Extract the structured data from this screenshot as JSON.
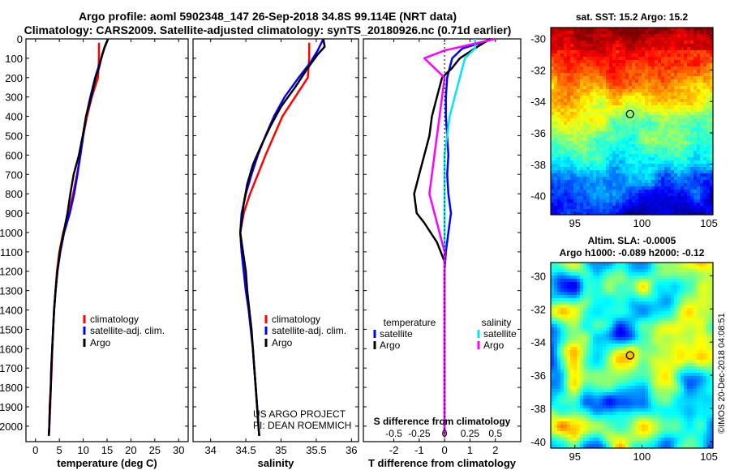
{
  "header": {
    "line1": "Argo profile: aoml 5902348_147 26-Sep-2018 34.8S 99.114E (NRT data)",
    "line2": "Climatology: CARS2009. Satellite-adjusted climatology: synTS_20180926.nc (0.71d earlier)"
  },
  "colors": {
    "climatology": "#ff0000",
    "satellite": "#0000ff",
    "argo": "#000000",
    "sat_salinity": "#00e5ff",
    "argo_salinity": "#ff00ff"
  },
  "chart_data": [
    {
      "type": "line",
      "panel": "temperature",
      "xlabel": "temperature (deg C)",
      "xlim": [
        -2,
        32
      ],
      "xticks": [
        0,
        5,
        10,
        15,
        20,
        25,
        30
      ],
      "ylim": [
        2080,
        0
      ],
      "yticks": [
        0,
        100,
        200,
        300,
        400,
        500,
        600,
        700,
        800,
        900,
        1000,
        1100,
        1200,
        1300,
        1400,
        1500,
        1600,
        1700,
        1800,
        1900,
        2000
      ],
      "legend": [
        "climatology",
        "satellite-adj. clim.",
        "Argo"
      ],
      "series": [
        {
          "name": "climatology",
          "color": "#ff0000",
          "points": [
            [
              13.3,
              20
            ],
            [
              13.3,
              100
            ],
            [
              13.1,
              200
            ],
            [
              11.8,
              300
            ],
            [
              10.8,
              400
            ],
            [
              10.0,
              500
            ],
            [
              9.4,
              600
            ],
            [
              8.7,
              700
            ],
            [
              7.9,
              800
            ],
            [
              7.0,
              900
            ],
            [
              5.8,
              1000
            ],
            [
              5.0,
              1100
            ],
            [
              4.5,
              1200
            ],
            [
              4.2,
              1300
            ],
            [
              3.9,
              1400
            ],
            [
              3.7,
              1500
            ],
            [
              3.5,
              1600
            ],
            [
              3.4,
              1700
            ],
            [
              3.2,
              1800
            ],
            [
              3.1,
              1900
            ],
            [
              2.9,
              2000
            ],
            [
              2.8,
              2050
            ]
          ]
        },
        {
          "name": "satellite-adj. clim.",
          "color": "#0000ff",
          "points": [
            [
              15.2,
              0
            ],
            [
              14.4,
              50
            ],
            [
              13.8,
              100
            ],
            [
              12.5,
              200
            ],
            [
              11.5,
              300
            ],
            [
              10.6,
              400
            ],
            [
              10.0,
              500
            ],
            [
              9.4,
              600
            ],
            [
              8.8,
              700
            ],
            [
              8.1,
              800
            ],
            [
              7.2,
              900
            ],
            [
              6.0,
              1000
            ],
            [
              5.2,
              1100
            ],
            [
              4.6,
              1200
            ],
            [
              4.2,
              1300
            ],
            [
              3.9,
              1400
            ],
            [
              3.7,
              1500
            ],
            [
              3.5,
              1600
            ],
            [
              3.3,
              1700
            ],
            [
              3.2,
              1800
            ],
            [
              3.0,
              1900
            ],
            [
              2.9,
              2000
            ],
            [
              2.8,
              2050
            ]
          ]
        },
        {
          "name": "Argo",
          "color": "#000000",
          "points": [
            [
              15.2,
              0
            ],
            [
              14.5,
              40
            ],
            [
              14.0,
              80
            ],
            [
              13.3,
              150
            ],
            [
              12.6,
              200
            ],
            [
              11.7,
              300
            ],
            [
              10.6,
              400
            ],
            [
              9.9,
              500
            ],
            [
              9.1,
              600
            ],
            [
              8.0,
              700
            ],
            [
              7.3,
              800
            ],
            [
              6.7,
              900
            ],
            [
              5.9,
              1000
            ],
            [
              5.1,
              1100
            ],
            [
              4.6,
              1200
            ],
            [
              4.2,
              1300
            ],
            [
              3.9,
              1400
            ],
            [
              3.7,
              1500
            ],
            [
              3.5,
              1600
            ],
            [
              3.3,
              1700
            ],
            [
              3.2,
              1800
            ],
            [
              3.0,
              1900
            ],
            [
              2.9,
              2000
            ],
            [
              2.8,
              2050
            ]
          ]
        }
      ]
    },
    {
      "type": "line",
      "panel": "salinity",
      "xlabel": "salinity",
      "xlim": [
        33.75,
        36.1
      ],
      "xticks": [
        34,
        34.5,
        35,
        35.5,
        36
      ],
      "xtick_labels": [
        "34",
        "34.5",
        "35",
        "35.5",
        "36"
      ],
      "ylim": [
        2080,
        0
      ],
      "legend": [
        "climatology",
        "satellite-adj. clim.",
        "Argo"
      ],
      "annotation": [
        "US ARGO PROJECT",
        "PI: DEAN ROEMMICH"
      ],
      "series": [
        {
          "name": "climatology",
          "color": "#ff0000",
          "points": [
            [
              35.4,
              20
            ],
            [
              35.4,
              100
            ],
            [
              35.38,
              200
            ],
            [
              35.2,
              300
            ],
            [
              35.02,
              400
            ],
            [
              34.9,
              500
            ],
            [
              34.78,
              600
            ],
            [
              34.67,
              700
            ],
            [
              34.56,
              800
            ],
            [
              34.47,
              900
            ],
            [
              34.42,
              1000
            ],
            [
              34.44,
              1100
            ],
            [
              34.47,
              1200
            ],
            [
              34.5,
              1300
            ],
            [
              34.54,
              1400
            ],
            [
              34.57,
              1500
            ],
            [
              34.6,
              1600
            ],
            [
              34.62,
              1700
            ],
            [
              34.64,
              1800
            ],
            [
              34.66,
              1900
            ],
            [
              34.68,
              2000
            ],
            [
              34.69,
              2050
            ]
          ]
        },
        {
          "name": "satellite-adj. clim.",
          "color": "#0000ff",
          "points": [
            [
              35.6,
              0
            ],
            [
              35.52,
              60
            ],
            [
              35.42,
              120
            ],
            [
              35.25,
              200
            ],
            [
              35.05,
              300
            ],
            [
              34.9,
              400
            ],
            [
              34.78,
              500
            ],
            [
              34.67,
              600
            ],
            [
              34.58,
              700
            ],
            [
              34.5,
              800
            ],
            [
              34.44,
              900
            ],
            [
              34.42,
              1000
            ],
            [
              34.44,
              1100
            ],
            [
              34.47,
              1200
            ],
            [
              34.5,
              1300
            ],
            [
              34.54,
              1400
            ],
            [
              34.57,
              1500
            ],
            [
              34.6,
              1600
            ],
            [
              34.62,
              1700
            ],
            [
              34.64,
              1800
            ],
            [
              34.66,
              1900
            ],
            [
              34.68,
              2000
            ],
            [
              34.69,
              2050
            ]
          ]
        },
        {
          "name": "Argo",
          "color": "#000000",
          "points": [
            [
              35.6,
              0
            ],
            [
              35.62,
              40
            ],
            [
              35.52,
              80
            ],
            [
              35.38,
              150
            ],
            [
              35.2,
              250
            ],
            [
              35.0,
              350
            ],
            [
              34.85,
              450
            ],
            [
              34.72,
              550
            ],
            [
              34.6,
              650
            ],
            [
              34.52,
              750
            ],
            [
              34.47,
              850
            ],
            [
              34.44,
              950
            ],
            [
              34.42,
              1000
            ],
            [
              34.46,
              1100
            ],
            [
              34.5,
              1200
            ],
            [
              34.52,
              1300
            ],
            [
              34.55,
              1400
            ],
            [
              34.58,
              1500
            ],
            [
              34.6,
              1600
            ],
            [
              34.62,
              1700
            ],
            [
              34.64,
              1800
            ],
            [
              34.66,
              1900
            ],
            [
              34.68,
              2000
            ],
            [
              34.69,
              2050
            ]
          ]
        }
      ]
    },
    {
      "type": "line",
      "panel": "difference",
      "xlabel": "T difference from climatology",
      "xlim": [
        -3.2,
        3.0
      ],
      "xticks": [
        -2,
        -1,
        0,
        1,
        2
      ],
      "top_xlabel": "S difference from climatology",
      "top_xticks": [
        "-0.5",
        "-0.25",
        "0",
        "0.25",
        "0.5"
      ],
      "s_scale": 4,
      "ylim": [
        2080,
        0
      ],
      "legend_left_title": "temperature",
      "legend_right_title": "salinity",
      "legend": [
        "satellite",
        "Argo"
      ],
      "series": [
        {
          "name": "T satellite",
          "color": "#0000ff",
          "points": [
            [
              1.9,
              0
            ],
            [
              0.7,
              50
            ],
            [
              0.3,
              100
            ],
            [
              0.2,
              150
            ],
            [
              0.1,
              200
            ],
            [
              0.05,
              300
            ],
            [
              0.05,
              400
            ],
            [
              0.1,
              500
            ],
            [
              0.15,
              600
            ],
            [
              0.1,
              700
            ],
            [
              0.15,
              800
            ],
            [
              0.25,
              900
            ],
            [
              0.15,
              1000
            ],
            [
              0.05,
              1100
            ],
            [
              0.0,
              1200
            ],
            [
              0.0,
              1400
            ],
            [
              0.0,
              1600
            ],
            [
              0.0,
              1800
            ],
            [
              0.0,
              2050
            ]
          ]
        },
        {
          "name": "T Argo",
          "color": "#000000",
          "points": [
            [
              1.8,
              0
            ],
            [
              1.3,
              40
            ],
            [
              0.6,
              100
            ],
            [
              0.3,
              150
            ],
            [
              -0.1,
              200
            ],
            [
              -0.3,
              300
            ],
            [
              -0.5,
              400
            ],
            [
              -0.6,
              500
            ],
            [
              -0.8,
              600
            ],
            [
              -1.0,
              700
            ],
            [
              -1.2,
              800
            ],
            [
              -1.1,
              900
            ],
            [
              -0.8,
              950
            ],
            [
              -0.3,
              1050
            ],
            [
              0.0,
              1150
            ],
            [
              0.0,
              1200
            ],
            [
              0.0,
              1400
            ],
            [
              0.0,
              1600
            ],
            [
              0.0,
              1800
            ],
            [
              0.0,
              2050
            ]
          ]
        },
        {
          "name": "S satellite",
          "color": "#00e5ff",
          "points": [
            [
              0.3,
              0
            ],
            [
              0.3,
              50
            ],
            [
              0.2,
              100
            ],
            [
              0.15,
              200
            ],
            [
              0.1,
              300
            ],
            [
              0.05,
              400
            ],
            [
              0.0,
              600
            ],
            [
              0.0,
              800
            ],
            [
              0.0,
              1000
            ],
            [
              0.0,
              1500
            ],
            [
              0.0,
              2050
            ]
          ]
        },
        {
          "name": "S Argo",
          "color": "#ff00ff",
          "points": [
            [
              0.5,
              0
            ],
            [
              0.0,
              60
            ],
            [
              -0.2,
              100
            ],
            [
              -0.1,
              150
            ],
            [
              0.0,
              200
            ],
            [
              -0.05,
              400
            ],
            [
              -0.1,
              600
            ],
            [
              -0.15,
              800
            ],
            [
              -0.1,
              900
            ],
            [
              0.0,
              1100
            ],
            [
              0.0,
              1500
            ],
            [
              0.0,
              2050
            ]
          ]
        }
      ]
    },
    {
      "type": "heatmap",
      "panel": "sst-map",
      "title": "sat. SST: 15.2 Argo: 15.2",
      "xlim": [
        93.2,
        105.3
      ],
      "ylim": [
        -41.2,
        -29.3
      ],
      "xticks": [
        95,
        100,
        105
      ],
      "yticks": [
        -30,
        -32,
        -34,
        -36,
        -38,
        -40
      ],
      "marker": {
        "lon": 99.114,
        "lat": -34.8,
        "value": 15.2
      }
    },
    {
      "type": "heatmap",
      "panel": "sla-map",
      "title_line1": "Altim. SLA: -0.0005",
      "title_line2": "Argo h1000: -0.089 h2000: -0.12",
      "xlim": [
        93.2,
        105.3
      ],
      "ylim": [
        -40.4,
        -29.2
      ],
      "xticks": [
        95,
        100,
        105
      ],
      "yticks": [
        -30,
        -32,
        -34,
        -36,
        -38,
        -40
      ],
      "marker": {
        "lon": 99.114,
        "lat": -34.8
      }
    }
  ],
  "depth_label_panel": {
    "yticks": [
      0,
      100,
      200,
      300,
      400,
      500,
      600,
      700,
      800,
      900,
      1000,
      1100,
      1200,
      1300,
      1400,
      1500,
      1600,
      1700,
      1800,
      1900,
      2000
    ]
  },
  "credit": "©IMOS 20-Dec-2018 04:08:51"
}
